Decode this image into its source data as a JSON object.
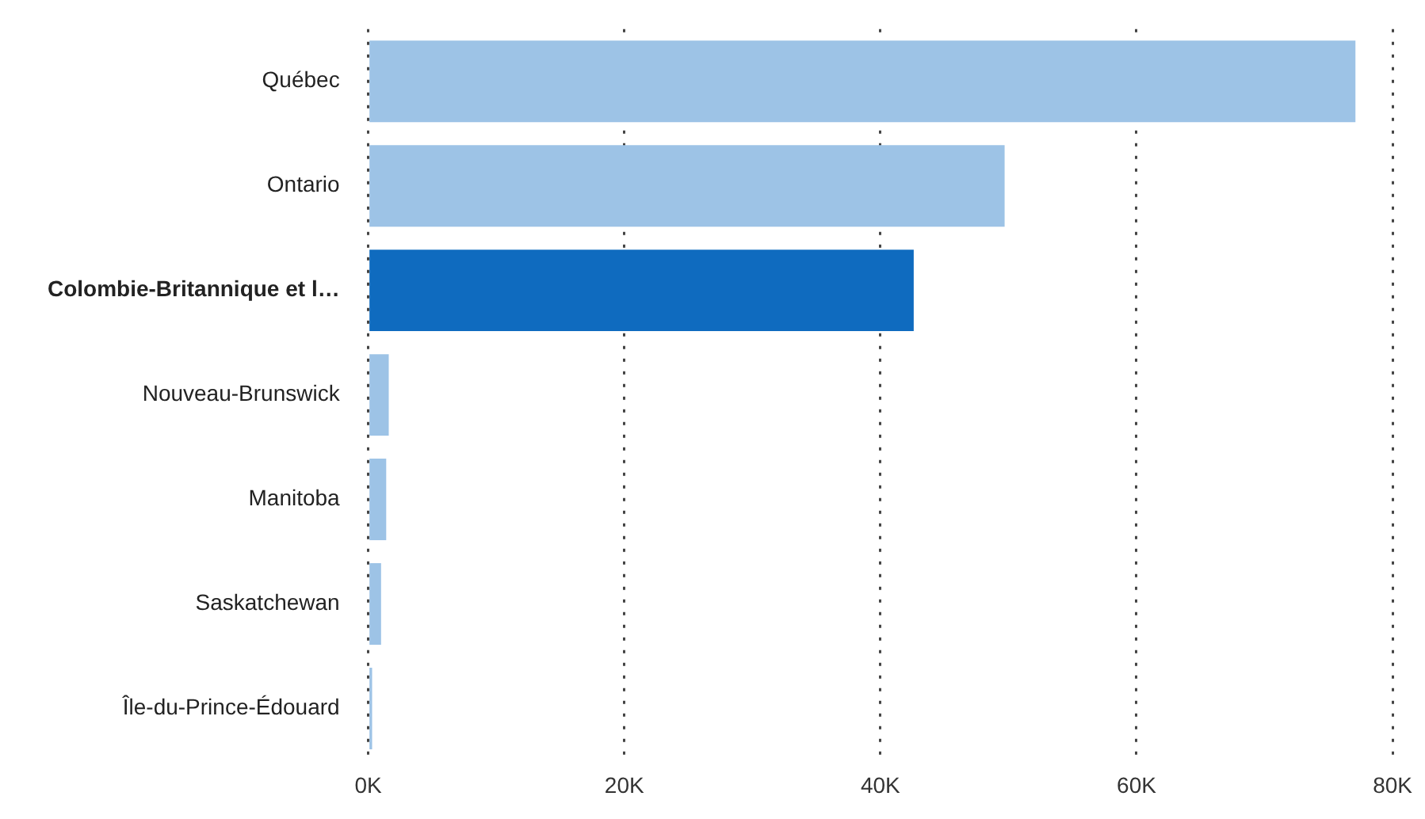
{
  "chart_data": {
    "type": "bar",
    "orientation": "horizontal",
    "categories": [
      "Québec",
      "Ontario",
      "Colombie-Britannique et l…",
      "Nouveau-Brunswick",
      "Manitoba",
      "Saskatchewan",
      "Île-du-Prince-Édouard"
    ],
    "values": [
      77100,
      49700,
      42600,
      1600,
      1400,
      1000,
      300
    ],
    "colors": [
      "#9dc3e6",
      "#9dc3e6",
      "#0f6bbf",
      "#9dc3e6",
      "#9dc3e6",
      "#9dc3e6",
      "#9dc3e6"
    ],
    "xlim": [
      0,
      80000
    ],
    "xticks": [
      {
        "value": 0,
        "label": "0K"
      },
      {
        "value": 20000,
        "label": "20K"
      },
      {
        "value": 40000,
        "label": "40K"
      },
      {
        "value": 60000,
        "label": "60K"
      },
      {
        "value": 80000,
        "label": "80K"
      }
    ],
    "grid": "x",
    "legend": false
  }
}
